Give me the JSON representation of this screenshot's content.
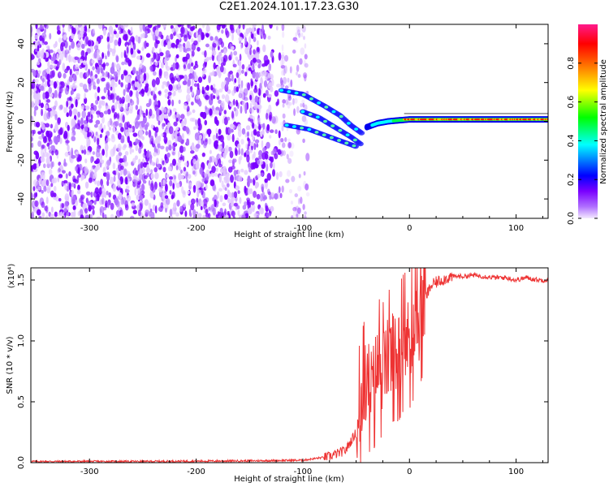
{
  "title": "C2E1.2024.101.17.23.G30",
  "chart_data": [
    {
      "type": "heatmap",
      "title": "C2E1.2024.101.17.23.G30",
      "xlabel": "Height of straight line (km)",
      "ylabel": "Frequency (Hz)",
      "xlim": [
        -355,
        130
      ],
      "ylim": [
        -50,
        50
      ],
      "x_ticks": [
        -300,
        -200,
        -100,
        0,
        100
      ],
      "y_ticks": [
        -40,
        -20,
        0,
        20,
        40
      ],
      "colorbar": {
        "label": "Normalized spectral amplitude",
        "range": [
          0,
          1
        ],
        "ticks": [
          0.0,
          0.2,
          0.4,
          0.6,
          0.8
        ],
        "colors": [
          "#f4eaff",
          "#7a00ff",
          "#0000ff",
          "#00ffff",
          "#00ff00",
          "#ffff00",
          "#ff0000",
          "#ff1a8c"
        ]
      },
      "features": [
        {
          "description": "noise region",
          "x": [
            -355,
            -95
          ],
          "freq": [
            -50,
            50
          ],
          "amplitude": 0.05
        },
        {
          "description": "upper track",
          "points": [
            [
              -120,
              16
            ],
            [
              -100,
              14
            ],
            [
              -80,
              8
            ],
            [
              -65,
              3
            ],
            [
              -55,
              -2
            ],
            [
              -45,
              -6
            ]
          ]
        },
        {
          "description": "middle track",
          "points": [
            [
              -100,
              5
            ],
            [
              -85,
              2
            ],
            [
              -70,
              -3
            ],
            [
              -55,
              -8
            ],
            [
              -45,
              -12
            ]
          ]
        },
        {
          "description": "lower track",
          "points": [
            [
              -115,
              -2
            ],
            [
              -95,
              -4
            ],
            [
              -80,
              -7
            ],
            [
              -65,
              -10
            ],
            [
              -50,
              -13
            ]
          ]
        },
        {
          "description": "signal line",
          "points": [
            [
              -40,
              -3
            ],
            [
              -30,
              -1
            ],
            [
              -20,
              0
            ],
            [
              0,
              1
            ],
            [
              130,
              1
            ]
          ],
          "amplitude": 0.9
        }
      ]
    },
    {
      "type": "line",
      "xlabel": "Height of straight line (km)",
      "ylabel": "SNR (10 * v/v)",
      "y_scale_label": "(x10⁴)",
      "xlim": [
        -355,
        130
      ],
      "ylim": [
        0,
        1.6
      ],
      "x_ticks": [
        -300,
        -200,
        -100,
        0,
        100
      ],
      "y_ticks": [
        0.0,
        0.5,
        1.0,
        1.5
      ],
      "color": "#ee3333",
      "x": [
        -355,
        -250,
        -150,
        -100,
        -75,
        -60,
        -50,
        -45,
        -40,
        -35,
        -30,
        -25,
        -20,
        -15,
        -10,
        -5,
        0,
        5,
        10,
        15,
        20,
        25,
        30,
        40,
        50,
        60,
        70,
        80,
        90,
        100,
        110,
        120,
        130
      ],
      "y": [
        0.01,
        0.01,
        0.015,
        0.02,
        0.05,
        0.1,
        0.25,
        0.5,
        0.7,
        0.6,
        0.8,
        0.75,
        0.85,
        0.9,
        0.9,
        1.0,
        1.0,
        1.1,
        1.2,
        1.35,
        1.45,
        1.48,
        1.5,
        1.53,
        1.53,
        1.54,
        1.53,
        1.52,
        1.52,
        1.5,
        1.52,
        1.5,
        1.5
      ]
    }
  ]
}
